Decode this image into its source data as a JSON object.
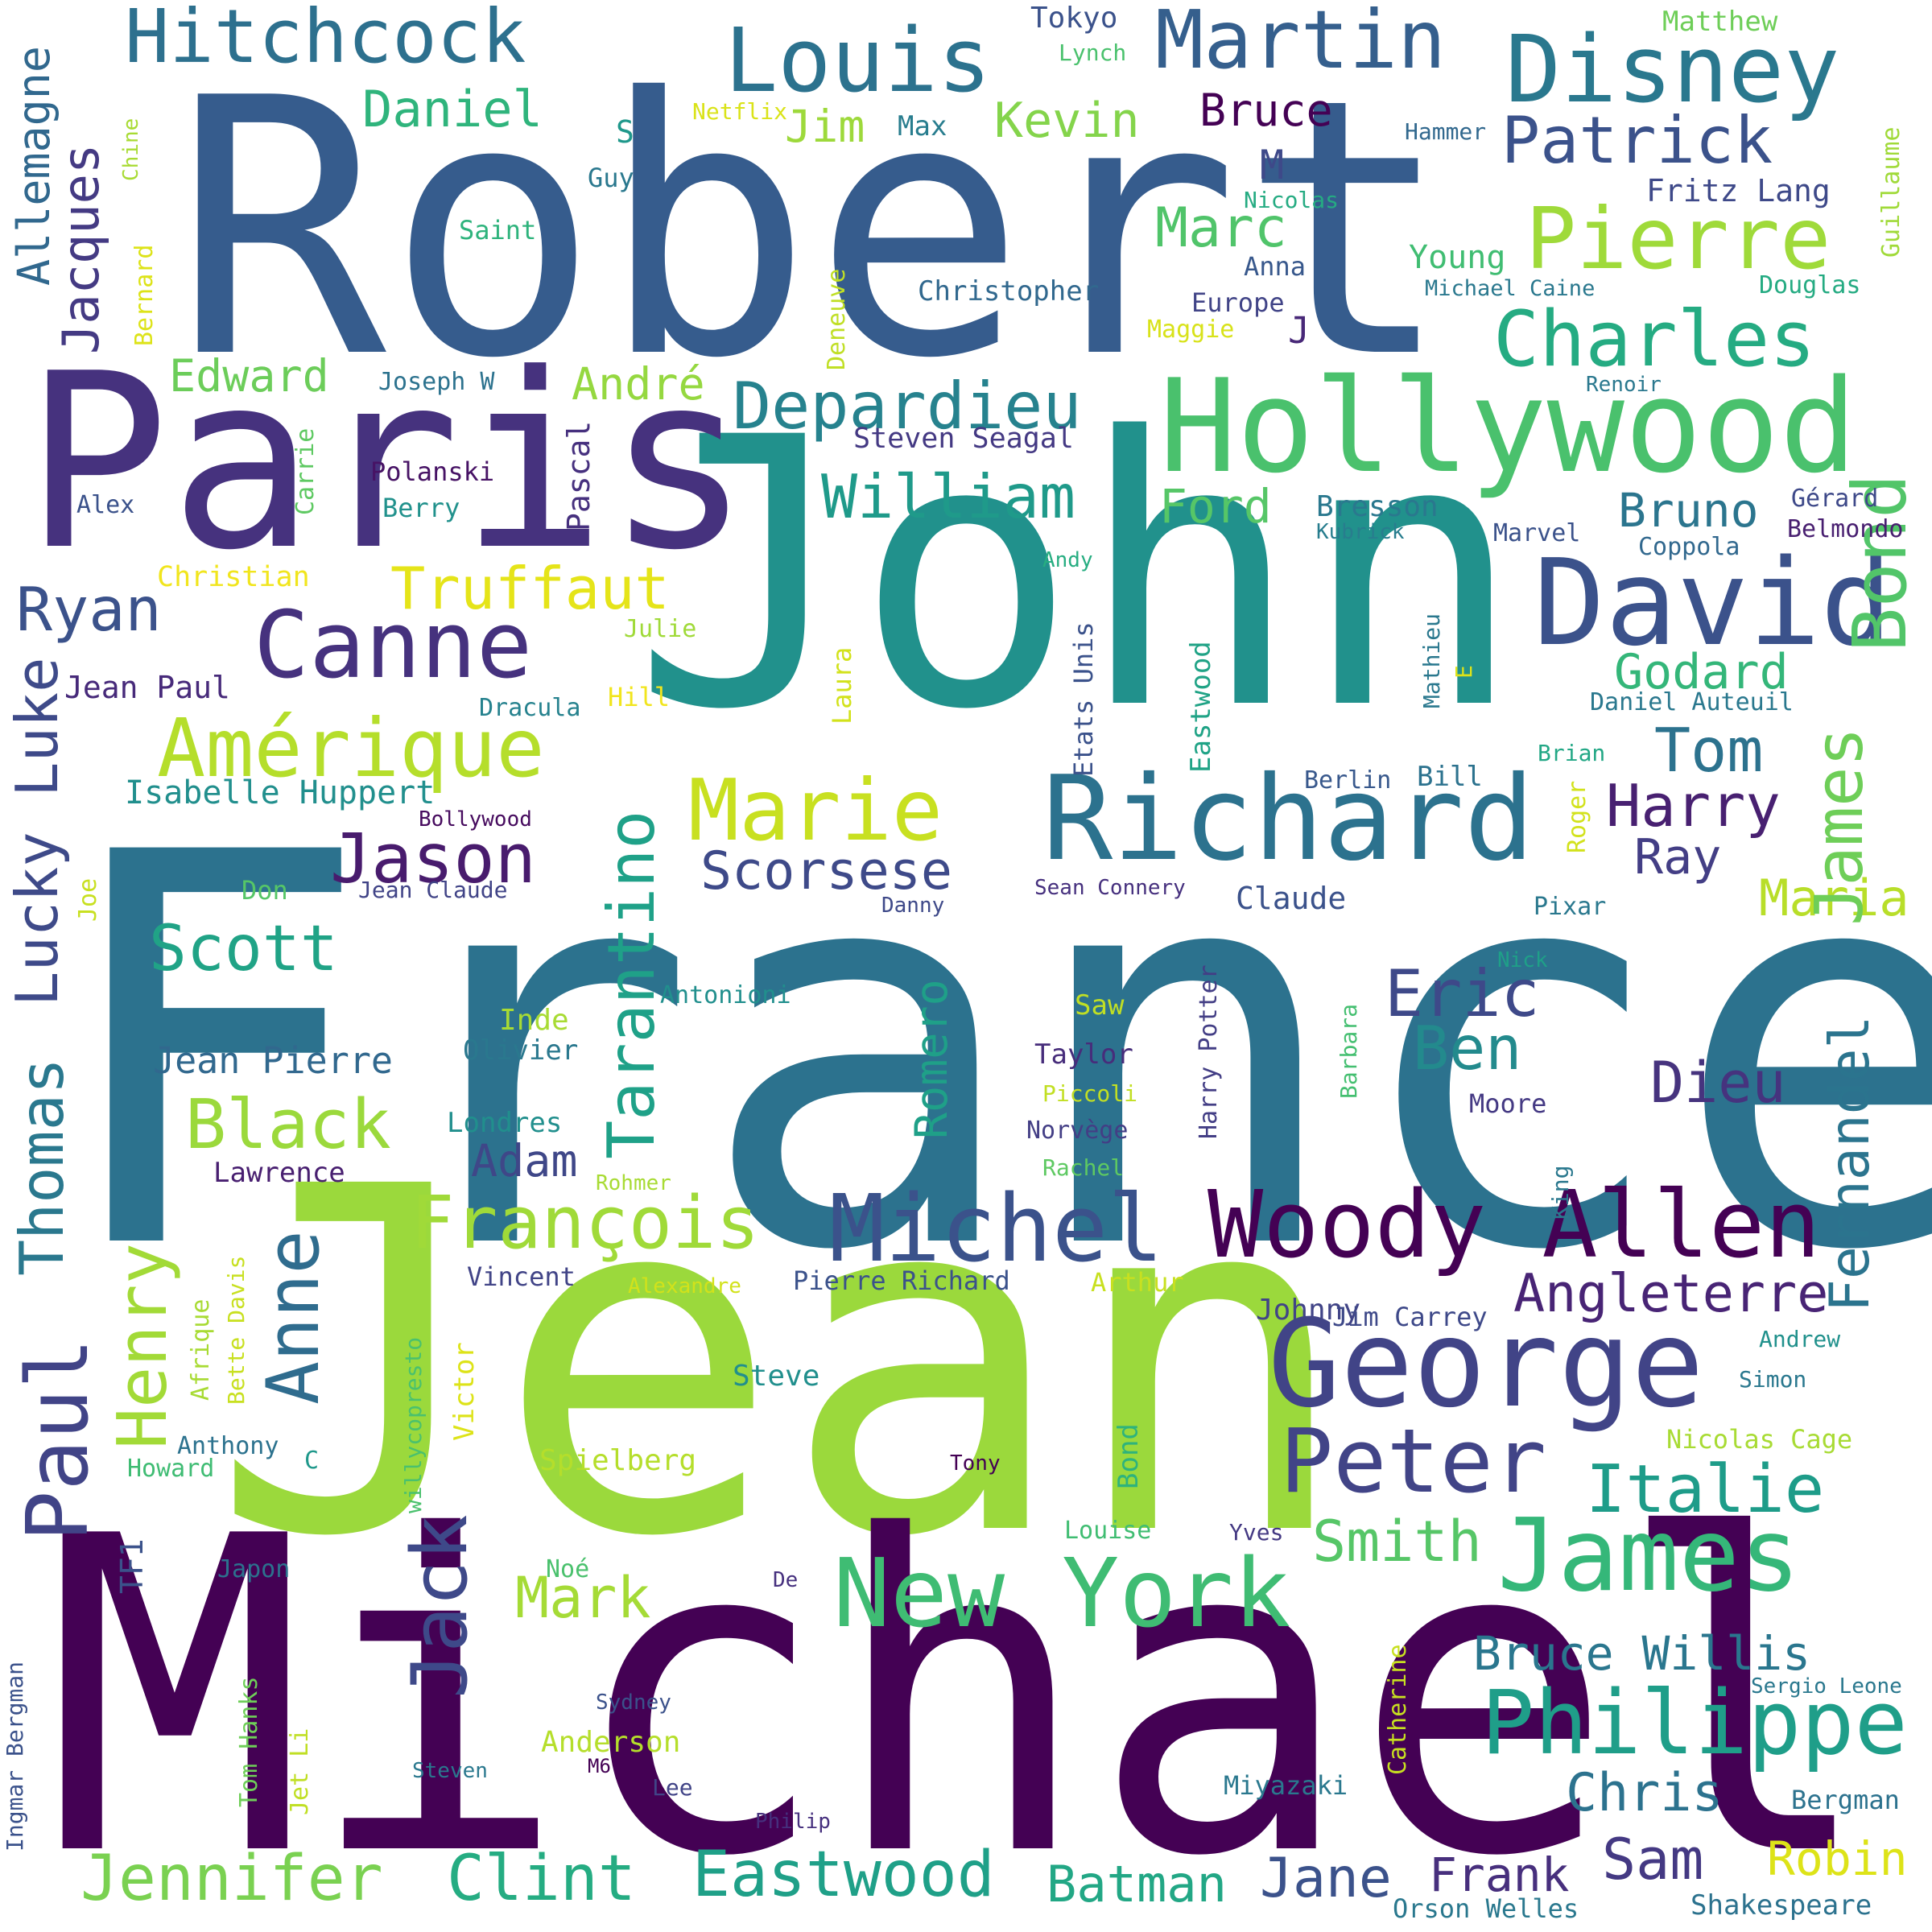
{
  "word_cloud": {
    "background": "#ffffff",
    "palette": "viridis",
    "words": [
      {
        "text": "France",
        "color": "#2c728e"
      },
      {
        "text": "Jean",
        "color": "#9bd93c"
      },
      {
        "text": "Michael",
        "color": "#440154"
      },
      {
        "text": "Robert",
        "color": "#365c8d"
      },
      {
        "text": "John",
        "color": "#21918c"
      },
      {
        "text": "Paris",
        "color": "#46327e"
      },
      {
        "text": "Hollywood",
        "color": "#4ac16d"
      },
      {
        "text": "Richard",
        "color": "#2c728e"
      },
      {
        "text": "David",
        "color": "#3b528b"
      },
      {
        "text": "George",
        "color": "#414487"
      },
      {
        "text": "Woody Allen",
        "color": "#440154"
      },
      {
        "text": "Michel",
        "color": "#3b528b"
      },
      {
        "text": "New York",
        "color": "#3fbc73"
      },
      {
        "text": "James",
        "color": "#35b779"
      },
      {
        "text": "Philippe",
        "color": "#1f9e89"
      },
      {
        "text": "Peter",
        "color": "#414487"
      },
      {
        "text": "Disney",
        "color": "#2a788e"
      },
      {
        "text": "Louis",
        "color": "#2c728e"
      },
      {
        "text": "Martin",
        "color": "#355f8d"
      },
      {
        "text": "Hitchcock",
        "color": "#2d708e"
      },
      {
        "text": "Pierre",
        "color": "#9fda3a"
      },
      {
        "text": "Charles",
        "color": "#25ab82"
      },
      {
        "text": "Patrick",
        "color": "#3b528b"
      },
      {
        "text": "Canne",
        "color": "#46327e"
      },
      {
        "text": "Amérique",
        "color": "#b5de2b"
      },
      {
        "text": "Marie",
        "color": "#c8e020"
      },
      {
        "text": "Depardieu",
        "color": "#26828e"
      },
      {
        "text": "Jason",
        "color": "#481b6d"
      },
      {
        "text": "William",
        "color": "#1f9a8a"
      },
      {
        "text": "Bond",
        "color": "#52c569"
      },
      {
        "text": "Tarantino",
        "color": "#1fa188"
      },
      {
        "text": "Truffaut",
        "color": "#e5e419"
      },
      {
        "text": "Ryan",
        "color": "#3b528b"
      },
      {
        "text": "Scott",
        "color": "#20a386"
      },
      {
        "text": "Eric",
        "color": "#3e4989"
      },
      {
        "text": "Ben",
        "color": "#238a8d"
      },
      {
        "text": "Dieu",
        "color": "#46337e"
      },
      {
        "text": "Tom",
        "color": "#2c728e"
      },
      {
        "text": "Harry",
        "color": "#482071"
      },
      {
        "text": "Ray",
        "color": "#433e85"
      },
      {
        "text": "Maria",
        "color": "#b8de29"
      },
      {
        "text": "Godard",
        "color": "#34b679"
      },
      {
        "text": "James",
        "color": "#6ece58"
      },
      {
        "text": "Scorsese",
        "color": "#3e4a89"
      },
      {
        "text": "François",
        "color": "#a0da39"
      },
      {
        "text": "Angleterre",
        "color": "#482475"
      },
      {
        "text": "Fernandel",
        "color": "#2b748e"
      },
      {
        "text": "Italie",
        "color": "#1e9c89"
      },
      {
        "text": "Smith",
        "color": "#56c667"
      },
      {
        "text": "Bruce Willis",
        "color": "#2a768e"
      },
      {
        "text": "Chris",
        "color": "#2c728e"
      },
      {
        "text": "Sam",
        "color": "#443983"
      },
      {
        "text": "Robin",
        "color": "#dde318"
      },
      {
        "text": "Frank",
        "color": "#472f7d"
      },
      {
        "text": "Jane",
        "color": "#3b528b"
      },
      {
        "text": "Batman",
        "color": "#22a785"
      },
      {
        "text": "Eastwood",
        "color": "#1fa088"
      },
      {
        "text": "Clint",
        "color": "#25ac82"
      },
      {
        "text": "Jennifer",
        "color": "#7ad151"
      },
      {
        "text": "Mark",
        "color": "#a5db36"
      },
      {
        "text": "Jack",
        "color": "#3e4989"
      },
      {
        "text": "Henry",
        "color": "#a2da37"
      },
      {
        "text": "Anne",
        "color": "#2f6c8e"
      },
      {
        "text": "Paul",
        "color": "#414487"
      },
      {
        "text": "Thomas",
        "color": "#2a788e"
      },
      {
        "text": "Lucky Luke",
        "color": "#3e4a89"
      },
      {
        "text": "Black",
        "color": "#9bd93c"
      },
      {
        "text": "Adam",
        "color": "#3f4788"
      },
      {
        "text": "Romero",
        "color": "#1fa088"
      },
      {
        "text": "Jacques",
        "color": "#443a83"
      },
      {
        "text": "Allemagne",
        "color": "#31688e"
      },
      {
        "text": "Daniel",
        "color": "#2fb47c"
      },
      {
        "text": "Jim",
        "color": "#9dd93b"
      },
      {
        "text": "Kevin",
        "color": "#84d44b"
      },
      {
        "text": "Bruce",
        "color": "#440154"
      },
      {
        "text": "Marc",
        "color": "#50c46a"
      },
      {
        "text": "Edward",
        "color": "#6ccd5a"
      },
      {
        "text": "André",
        "color": "#95d840"
      },
      {
        "text": "Ford",
        "color": "#56c667"
      },
      {
        "text": "Bruno",
        "color": "#2b758e"
      },
      {
        "text": "Jean Pierre",
        "color": "#31688e"
      },
      {
        "text": "Isabelle Huppert",
        "color": "#218f8d"
      },
      {
        "text": "Jean Paul",
        "color": "#472a7a"
      },
      {
        "text": "Christian",
        "color": "#f1e51d"
      },
      {
        "text": "Pascal",
        "color": "#46307e"
      },
      {
        "text": "Polanski",
        "color": "#471365"
      },
      {
        "text": "Berry",
        "color": "#21918c"
      },
      {
        "text": "Alex",
        "color": "#3b528b"
      },
      {
        "text": "Carrie",
        "color": "#5ec962"
      },
      {
        "text": "Joseph W",
        "color": "#2c728e"
      },
      {
        "text": "Steven Seagal",
        "color": "#443983"
      },
      {
        "text": "Christopher",
        "color": "#31688e"
      },
      {
        "text": "Europe",
        "color": "#414487"
      },
      {
        "text": "Maggie",
        "color": "#d8e219"
      },
      {
        "text": "Anna",
        "color": "#38588c"
      },
      {
        "text": "J",
        "color": "#482878"
      },
      {
        "text": "M",
        "color": "#3e4989"
      },
      {
        "text": "Tokyo",
        "color": "#3b528b"
      },
      {
        "text": "Lynch",
        "color": "#4ac16d"
      },
      {
        "text": "Matthew",
        "color": "#6ece58"
      },
      {
        "text": "Netflix",
        "color": "#dae319"
      },
      {
        "text": "Max",
        "color": "#287d8e"
      },
      {
        "text": "S",
        "color": "#1f988b"
      },
      {
        "text": "Guy",
        "color": "#2a788e"
      },
      {
        "text": "Saint",
        "color": "#2eb37c"
      },
      {
        "text": "Chine",
        "color": "#a8db34"
      },
      {
        "text": "Bernard",
        "color": "#dde318"
      },
      {
        "text": "Deneuve",
        "color": "#c0df25"
      },
      {
        "text": "Hammer",
        "color": "#31688e"
      },
      {
        "text": "Nicolas",
        "color": "#25ab82"
      },
      {
        "text": "Fritz Lang",
        "color": "#3e4989"
      },
      {
        "text": "Young",
        "color": "#40bd72"
      },
      {
        "text": "Michael Caine",
        "color": "#2a788e"
      },
      {
        "text": "Douglas",
        "color": "#25ab82"
      },
      {
        "text": "Guillaume",
        "color": "#a0da39"
      },
      {
        "text": "Renoir",
        "color": "#2a788e"
      },
      {
        "text": "Gérard",
        "color": "#3e4989"
      },
      {
        "text": "Belmondo",
        "color": "#481f70"
      },
      {
        "text": "Coppola",
        "color": "#31688e"
      },
      {
        "text": "Marvel",
        "color": "#3b528b"
      },
      {
        "text": "Bresson",
        "color": "#2a788e"
      },
      {
        "text": "Kubrick",
        "color": "#287d8e"
      },
      {
        "text": "Andy",
        "color": "#27ad81"
      },
      {
        "text": "Julie",
        "color": "#a0da39"
      },
      {
        "text": "Hill",
        "color": "#f1e51d"
      },
      {
        "text": "Laura",
        "color": "#d2e21b"
      },
      {
        "text": "Etats Unis",
        "color": "#3b528b"
      },
      {
        "text": "Eastwood",
        "color": "#20a386"
      },
      {
        "text": "Mathieu",
        "color": "#2a788e"
      },
      {
        "text": "E",
        "color": "#dde318"
      },
      {
        "text": "Daniel Auteuil",
        "color": "#2a788e"
      },
      {
        "text": "Brian",
        "color": "#22a785"
      },
      {
        "text": "Roger",
        "color": "#d2e21b"
      },
      {
        "text": "Bill",
        "color": "#2c728e"
      },
      {
        "text": "Berlin",
        "color": "#38588c"
      },
      {
        "text": "Dracula",
        "color": "#26828e"
      },
      {
        "text": "Bollywood",
        "color": "#460b5e"
      },
      {
        "text": "Jean Claude",
        "color": "#414487"
      },
      {
        "text": "Don",
        "color": "#56c667"
      },
      {
        "text": "Joe",
        "color": "#c8e020"
      },
      {
        "text": "Sean Connery",
        "color": "#46307e"
      },
      {
        "text": "Danny",
        "color": "#3e4989"
      },
      {
        "text": "Claude",
        "color": "#3b528b"
      },
      {
        "text": "Pixar",
        "color": "#2a788e"
      },
      {
        "text": "Nick",
        "color": "#1fa088"
      },
      {
        "text": "Antonioni",
        "color": "#218f8d"
      },
      {
        "text": "Inde",
        "color": "#a8db34"
      },
      {
        "text": "Olivier",
        "color": "#2a788e"
      },
      {
        "text": "Saw",
        "color": "#c0df25"
      },
      {
        "text": "Taylor",
        "color": "#472d7b"
      },
      {
        "text": "Piccoli",
        "color": "#c2df23"
      },
      {
        "text": "Harry Potter",
        "color": "#433e85"
      },
      {
        "text": "Barbara",
        "color": "#44bf70"
      },
      {
        "text": "Moore",
        "color": "#443983"
      },
      {
        "text": "Londres",
        "color": "#218f8d"
      },
      {
        "text": "Norvège",
        "color": "#433e85"
      },
      {
        "text": "Rachel",
        "color": "#5ec962"
      },
      {
        "text": "Lawrence",
        "color": "#481f70"
      },
      {
        "text": "Rohmer",
        "color": "#a8db34"
      },
      {
        "text": "King",
        "color": "#2a788e"
      },
      {
        "text": "Vincent",
        "color": "#414487"
      },
      {
        "text": "Alexandre",
        "color": "#d2e21b"
      },
      {
        "text": "Pierre Richard",
        "color": "#3b528b"
      },
      {
        "text": "Arthur",
        "color": "#c8e020"
      },
      {
        "text": "Johnny",
        "color": "#414487"
      },
      {
        "text": "Jim Carrey",
        "color": "#3e4989"
      },
      {
        "text": "Andrew",
        "color": "#21918c"
      },
      {
        "text": "Simon",
        "color": "#2a788e"
      },
      {
        "text": "Afrique",
        "color": "#a8db34"
      },
      {
        "text": "Bette Davis",
        "color": "#c8e020"
      },
      {
        "text": "willycopresto",
        "color": "#4ac16d"
      },
      {
        "text": "Victor",
        "color": "#dde318"
      },
      {
        "text": "Anthony",
        "color": "#2c728e"
      },
      {
        "text": "Howard",
        "color": "#3fbc73"
      },
      {
        "text": "C",
        "color": "#1f988b"
      },
      {
        "text": "Steve",
        "color": "#218f8d"
      },
      {
        "text": "Spielberg",
        "color": "#b5de2b"
      },
      {
        "text": "Tony",
        "color": "#440154"
      },
      {
        "text": "Bond",
        "color": "#2eb37c"
      },
      {
        "text": "Louise",
        "color": "#40bd72"
      },
      {
        "text": "Yves",
        "color": "#443983"
      },
      {
        "text": "Nicolas Cage",
        "color": "#a8db34"
      },
      {
        "text": "TF1",
        "color": "#3b528b"
      },
      {
        "text": "Japon",
        "color": "#2c728e"
      },
      {
        "text": "Noé",
        "color": "#4ac16d"
      },
      {
        "text": "De",
        "color": "#46307e"
      },
      {
        "text": "Ingmar Bergman",
        "color": "#3b528b"
      },
      {
        "text": "Tom Hanks",
        "color": "#6ece58"
      },
      {
        "text": "Jet Li",
        "color": "#c0df25"
      },
      {
        "text": "Sydney",
        "color": "#3b528b"
      },
      {
        "text": "Anderson",
        "color": "#b5de2b"
      },
      {
        "text": "M6",
        "color": "#440154"
      },
      {
        "text": "Steven",
        "color": "#2a788e"
      },
      {
        "text": "Lee",
        "color": "#414487"
      },
      {
        "text": "Philip",
        "color": "#46307e"
      },
      {
        "text": "Catherine",
        "color": "#c8e020"
      },
      {
        "text": "Miyazaki",
        "color": "#2a788e"
      },
      {
        "text": "Sergio Leone",
        "color": "#2a788e"
      },
      {
        "text": "Bergman",
        "color": "#2c728e"
      },
      {
        "text": "Orson Welles",
        "color": "#2a788e"
      },
      {
        "text": "Shakespeare",
        "color": "#2c728e"
      }
    ]
  }
}
